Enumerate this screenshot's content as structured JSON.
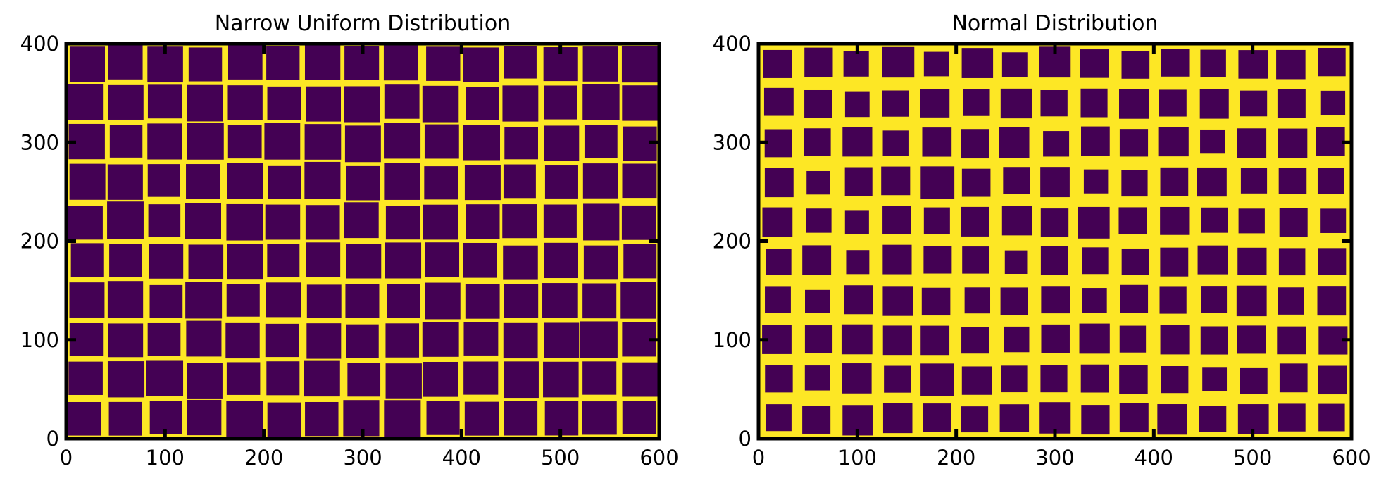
{
  "colors": {
    "background": "#fde725",
    "square": "#440154",
    "frame": "#000000"
  },
  "chart_data": [
    {
      "type": "heatmap",
      "title": "Narrow Uniform Distribution",
      "xlabel": "",
      "ylabel": "",
      "xlim": [
        0,
        600
      ],
      "ylim": [
        0,
        400
      ],
      "xticks": [
        "0",
        "100",
        "200",
        "300",
        "400",
        "500",
        "600"
      ],
      "yticks": [
        "0",
        "100",
        "200",
        "300",
        "400"
      ],
      "grid": false,
      "columns": 15,
      "rows": 10,
      "square_size_range": [
        33,
        37
      ],
      "description_values": "binary image: purple squares on yellow background"
    },
    {
      "type": "heatmap",
      "title": "Normal Distribution",
      "xlabel": "",
      "ylabel": "",
      "xlim": [
        0,
        600
      ],
      "ylim": [
        0,
        400
      ],
      "xticks": [
        "0",
        "100",
        "200",
        "300",
        "400",
        "500",
        "600"
      ],
      "yticks": [
        "0",
        "100",
        "200",
        "300",
        "400"
      ],
      "grid": false,
      "columns": 15,
      "rows": 10,
      "square_size_range": [
        22,
        34
      ],
      "description_values": "binary image: purple squares on yellow background"
    }
  ]
}
